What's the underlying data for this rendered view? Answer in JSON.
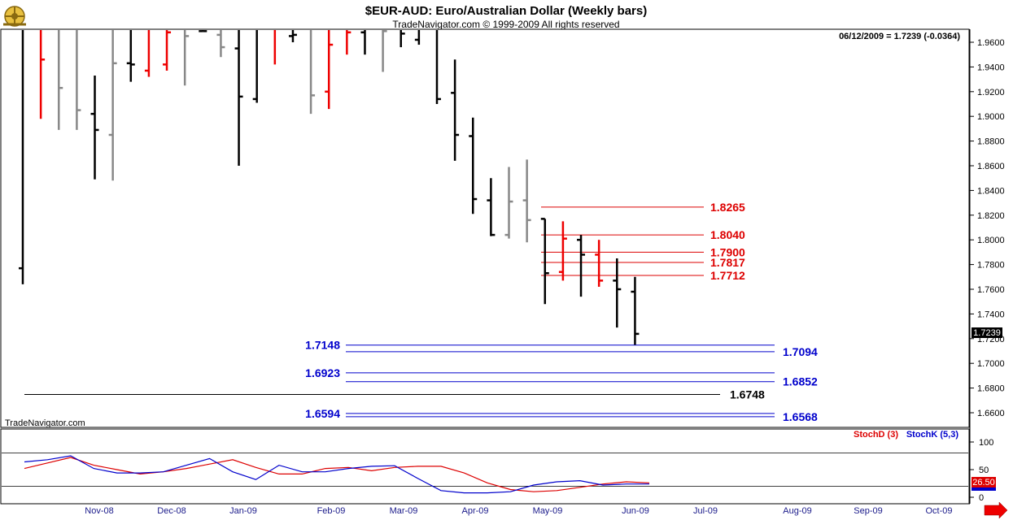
{
  "header": {
    "title": "$EUR-AUD:  Euro/Australian Dollar  (Weekly bars)",
    "subtitle": "TradeNavigator.com © 1999-2009 All rights reserved",
    "quote": "06/12/2009 = 1.7239 (-0.0364)",
    "watermark": "TradeNavigator.com",
    "logo_icon": "ship-wheel-logo-icon"
  },
  "colors": {
    "up": "#000000",
    "down": "#ee0000",
    "neutral": "#888888",
    "resistance": "#dd0000",
    "support": "#0000cc",
    "key_level": "#000000",
    "stochD": "#dd0000",
    "stochK": "#0000cc"
  },
  "chart_data": [
    {
      "type": "ohlc",
      "ylim": [
        1.645,
        1.97
      ],
      "y_ticks": [
        "1.9600",
        "1.9400",
        "1.9200",
        "1.9000",
        "1.8800",
        "1.8600",
        "1.8400",
        "1.8200",
        "1.8000",
        "1.7800",
        "1.7600",
        "1.7400",
        "1.7200",
        "1.7000",
        "1.6800",
        "1.6600"
      ],
      "last_price_label": "1.7239",
      "x_ticks": [
        "Nov-08",
        "Dec-08",
        "Jan-09",
        "Feb-09",
        "Mar-09",
        "Apr-09",
        "May-09",
        "Jun-09",
        "Jul-09",
        "Aug-09",
        "Sep-09",
        "Oct-09"
      ],
      "bars": [
        {
          "o": 1.777,
          "h": 1.975,
          "l": 1.764,
          "c": 1.975,
          "dir": "up"
        },
        {
          "o": 1.975,
          "h": 1.975,
          "l": 1.898,
          "c": 1.946,
          "dir": "down"
        },
        {
          "o": 1.975,
          "h": 1.975,
          "l": 1.889,
          "c": 1.923,
          "dir": "neutral"
        },
        {
          "o": 1.975,
          "h": 1.975,
          "l": 1.889,
          "c": 1.905,
          "dir": "neutral"
        },
        {
          "o": 1.902,
          "h": 1.933,
          "l": 1.849,
          "c": 1.889,
          "dir": "up"
        },
        {
          "o": 1.885,
          "h": 1.975,
          "l": 1.848,
          "c": 1.943,
          "dir": "neutral"
        },
        {
          "o": 1.943,
          "h": 1.975,
          "l": 1.928,
          "c": 1.942,
          "dir": "up"
        },
        {
          "o": 1.937,
          "h": 1.975,
          "l": 1.932,
          "c": 1.972,
          "dir": "down"
        },
        {
          "o": 1.942,
          "h": 1.975,
          "l": 1.937,
          "c": 1.968,
          "dir": "down"
        },
        {
          "o": 1.973,
          "h": 1.975,
          "l": 1.925,
          "c": 1.965,
          "dir": "neutral"
        },
        {
          "o": 1.969,
          "h": 1.975,
          "l": 1.969,
          "c": 1.969,
          "dir": "up"
        },
        {
          "o": 1.966,
          "h": 1.975,
          "l": 1.948,
          "c": 1.956,
          "dir": "neutral"
        },
        {
          "o": 1.955,
          "h": 1.975,
          "l": 1.86,
          "c": 1.916,
          "dir": "up"
        },
        {
          "o": 1.914,
          "h": 1.975,
          "l": 1.911,
          "c": 1.975,
          "dir": "up"
        },
        {
          "o": 1.975,
          "h": 1.975,
          "l": 1.942,
          "c": 1.97,
          "dir": "down"
        },
        {
          "o": 1.965,
          "h": 1.975,
          "l": 1.96,
          "c": 1.966,
          "dir": "up"
        },
        {
          "o": 1.975,
          "h": 1.975,
          "l": 1.902,
          "c": 1.917,
          "dir": "neutral"
        },
        {
          "o": 1.92,
          "h": 1.975,
          "l": 1.906,
          "c": 1.958,
          "dir": "down"
        },
        {
          "o": 1.975,
          "h": 1.975,
          "l": 1.95,
          "c": 1.968,
          "dir": "down"
        },
        {
          "o": 1.968,
          "h": 1.975,
          "l": 1.95,
          "c": 1.975,
          "dir": "up"
        },
        {
          "o": 1.975,
          "h": 1.975,
          "l": 1.936,
          "c": 1.969,
          "dir": "neutral"
        },
        {
          "o": 1.975,
          "h": 1.975,
          "l": 1.956,
          "c": 1.967,
          "dir": "up"
        },
        {
          "o": 1.962,
          "h": 1.975,
          "l": 1.958,
          "c": 1.975,
          "dir": "up"
        },
        {
          "o": 1.975,
          "h": 1.975,
          "l": 1.91,
          "c": 1.914,
          "dir": "up"
        },
        {
          "o": 1.919,
          "h": 1.946,
          "l": 1.864,
          "c": 1.885,
          "dir": "up"
        },
        {
          "o": 1.884,
          "h": 1.899,
          "l": 1.821,
          "c": 1.833,
          "dir": "up"
        },
        {
          "o": 1.832,
          "h": 1.85,
          "l": 1.803,
          "c": 1.804,
          "dir": "up"
        },
        {
          "o": 1.804,
          "h": 1.859,
          "l": 1.801,
          "c": 1.831,
          "dir": "neutral"
        },
        {
          "o": 1.832,
          "h": 1.865,
          "l": 1.798,
          "c": 1.816,
          "dir": "neutral"
        },
        {
          "o": 1.817,
          "h": 1.817,
          "l": 1.748,
          "c": 1.773,
          "dir": "up"
        },
        {
          "o": 1.774,
          "h": 1.815,
          "l": 1.767,
          "c": 1.801,
          "dir": "down"
        },
        {
          "o": 1.8,
          "h": 1.804,
          "l": 1.754,
          "c": 1.788,
          "dir": "up"
        },
        {
          "o": 1.788,
          "h": 1.8,
          "l": 1.762,
          "c": 1.767,
          "dir": "down"
        },
        {
          "o": 1.767,
          "h": 1.785,
          "l": 1.729,
          "c": 1.76,
          "dir": "up"
        },
        {
          "o": 1.758,
          "h": 1.77,
          "l": 1.715,
          "c": 1.7239,
          "dir": "up"
        }
      ],
      "resistance_levels": [
        "1.8265",
        "1.8040",
        "1.7900",
        "1.7817",
        "1.7712"
      ],
      "support_levels_left": [
        "1.7148",
        "1.6923",
        "1.6594"
      ],
      "support_levels_right": [
        "1.7094",
        "1.6852",
        "1.6568"
      ],
      "key_level": "1.6748"
    },
    {
      "type": "line",
      "legend": [
        "StochD (3)",
        "StochK (5,3)"
      ],
      "y_ticks": [
        "100",
        "50",
        "0"
      ],
      "ref_lines": [
        80,
        20
      ],
      "last_value_label": "26.50",
      "series": [
        {
          "name": "StochD (3)",
          "values": [
            52,
            62,
            72,
            58,
            50,
            42,
            46,
            52,
            60,
            68,
            54,
            42,
            42,
            52,
            54,
            48,
            54,
            56,
            56,
            44,
            26,
            14,
            10,
            12,
            18,
            24,
            28,
            26
          ]
        },
        {
          "name": "StochK (5,3)",
          "values": [
            64,
            68,
            75,
            52,
            44,
            44,
            46,
            58,
            70,
            46,
            32,
            58,
            46,
            46,
            52,
            56,
            57,
            34,
            12,
            8,
            8,
            10,
            22,
            28,
            30,
            22,
            24,
            24
          ]
        }
      ]
    }
  ]
}
